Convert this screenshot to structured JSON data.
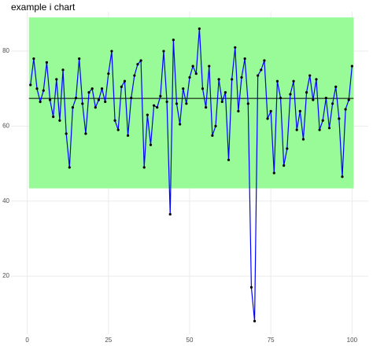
{
  "chart_data": {
    "type": "ichart",
    "title": "example i chart",
    "x": [
      1,
      2,
      3,
      4,
      5,
      6,
      7,
      8,
      9,
      10,
      11,
      12,
      13,
      14,
      15,
      16,
      17,
      18,
      19,
      20,
      21,
      22,
      23,
      24,
      25,
      26,
      27,
      28,
      29,
      30,
      31,
      32,
      33,
      34,
      35,
      36,
      37,
      38,
      39,
      40,
      41,
      42,
      43,
      44,
      45,
      46,
      47,
      48,
      49,
      50,
      51,
      52,
      53,
      54,
      55,
      56,
      57,
      58,
      59,
      60,
      61,
      62,
      63,
      64,
      65,
      66,
      67,
      68,
      69,
      70,
      71,
      72,
      73,
      74,
      75,
      76,
      77,
      78,
      79,
      80,
      81,
      82,
      83,
      84,
      85,
      86,
      87,
      88,
      89,
      90,
      91,
      92,
      93,
      94,
      95,
      96,
      97,
      98,
      99,
      100
    ],
    "values": [
      71,
      78,
      70,
      66.5,
      69.5,
      77,
      67,
      62.5,
      72.5,
      61.5,
      75,
      58,
      49,
      65,
      67.5,
      78,
      66,
      58,
      69,
      70,
      65,
      67,
      70,
      66.5,
      74,
      80,
      61.5,
      59,
      70.5,
      72,
      57.5,
      67.5,
      73.5,
      76.5,
      77.5,
      49,
      63,
      55,
      65.5,
      65,
      68,
      80,
      66.5,
      36.5,
      83,
      66,
      60.5,
      70,
      66,
      73,
      76,
      74,
      86,
      70,
      65,
      76,
      57.5,
      60,
      72.5,
      66.5,
      69,
      51,
      72.5,
      81,
      64,
      73,
      78,
      66,
      17,
      8,
      73.5,
      75,
      77.5,
      62,
      64,
      47.5,
      72,
      67.5,
      49.5,
      54,
      68.5,
      72,
      59,
      64,
      56.5,
      69,
      73.5,
      67,
      72.5,
      59,
      61.5,
      67.5,
      59.5,
      66,
      70.5,
      62,
      46.5,
      64.5,
      67,
      76
    ],
    "center": 67.4,
    "lcl": 43.4,
    "ucl": 89,
    "line_color": "#0000ff",
    "point_color": "#000000",
    "band_color": "#98fb98",
    "center_color": "#000000",
    "xlim": [
      -5,
      105
    ],
    "ylim": [
      4.5,
      90.5
    ],
    "xticks": [
      0,
      25,
      50,
      75,
      100
    ],
    "yticks": [
      20,
      40,
      60,
      80
    ],
    "grid": true
  }
}
